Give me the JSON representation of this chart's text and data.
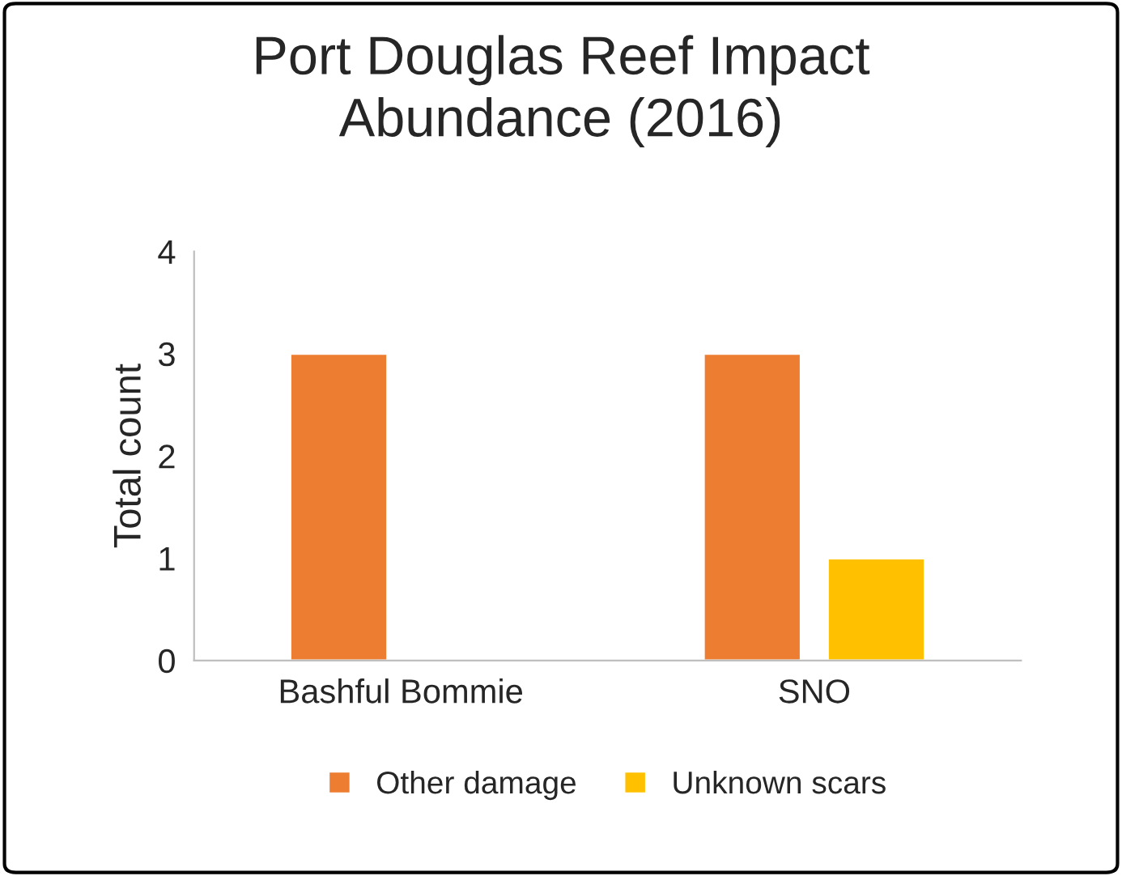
{
  "chart_data": {
    "type": "bar",
    "title": "Port Douglas Reef Impact\nAbundance (2016)",
    "ylabel": "Total count",
    "categories": [
      "Bashful Bommie",
      "SNO"
    ],
    "series": [
      {
        "name": "Other damage",
        "color": "#ed7d31",
        "values": [
          3,
          3
        ]
      },
      {
        "name": "Unknown scars",
        "color": "#ffc000",
        "values": [
          null,
          1
        ]
      }
    ],
    "ylim": [
      0,
      4
    ],
    "yticks": [
      0,
      1,
      2,
      3,
      4
    ],
    "grid": false,
    "legend": "bottom"
  }
}
